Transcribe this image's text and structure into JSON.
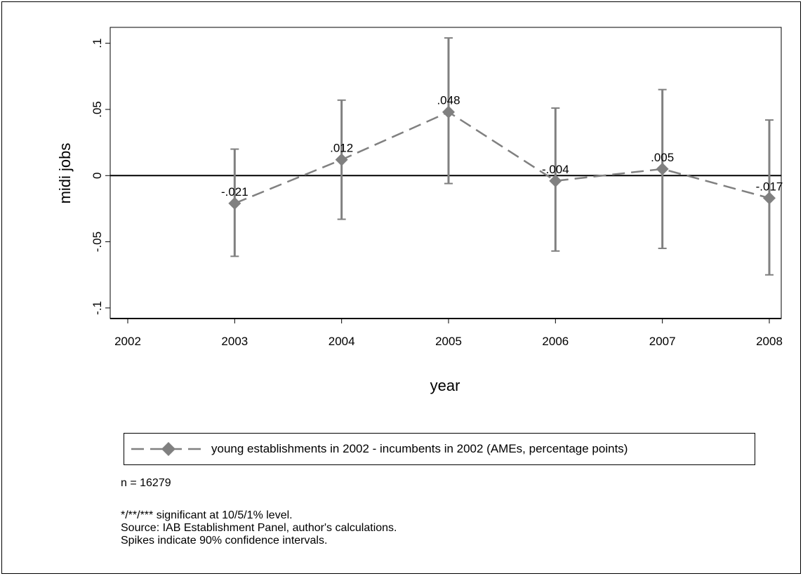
{
  "chart_data": {
    "type": "line",
    "ylabel": "midi jobs",
    "xlabel": "year",
    "x_ticks": [
      "2002",
      "2003",
      "2004",
      "2005",
      "2006",
      "2007",
      "2008"
    ],
    "y_ticks": [
      ".1",
      ".05",
      "0",
      "-.05",
      "-.1"
    ],
    "xlim": [
      2002,
      2008
    ],
    "ylim": [
      -0.108,
      0.112
    ],
    "reference_line_y": 0,
    "grid": false,
    "legend_position": "bottom",
    "series": [
      {
        "name": "young establishments in 2002 - incumbents in 2002 (AMEs, percentage points)",
        "x": [
          2003,
          2004,
          2005,
          2006,
          2007,
          2008
        ],
        "y": [
          -0.021,
          0.012,
          0.048,
          -0.004,
          0.005,
          -0.017
        ],
        "labels": [
          "-.021",
          ".012",
          ".048",
          "-.004",
          ".005",
          "-.017"
        ],
        "ci_low": [
          -0.061,
          -0.033,
          -0.006,
          -0.057,
          -0.055,
          -0.075
        ],
        "ci_high": [
          0.02,
          0.057,
          0.104,
          0.051,
          0.065,
          0.042
        ],
        "color": "#808080",
        "line_style": "dashed",
        "marker": "diamond"
      }
    ]
  },
  "notes": {
    "n": "n = 16279",
    "line1": "*/**/*** significant at 10/5/1% level.",
    "line2": "Source: IAB Establishment Panel, author's calculations.",
    "line3": "Spikes indicate 90% confidence intervals."
  }
}
